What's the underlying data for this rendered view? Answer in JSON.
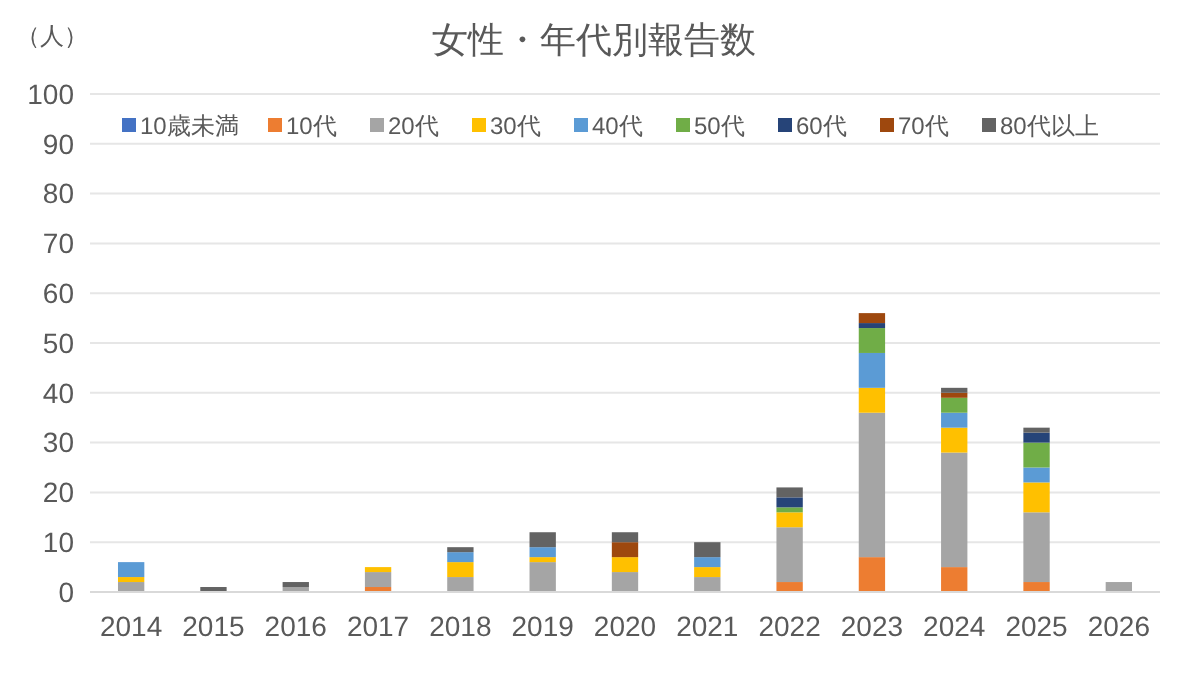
{
  "chart_data": {
    "type": "bar",
    "title": "女性・年代別報告数",
    "ylabel": "（人）",
    "stacked": true,
    "grid": "y",
    "legend": "top",
    "categories": [
      "2014",
      "2015",
      "2016",
      "2017",
      "2018",
      "2019",
      "2020",
      "2021",
      "2022",
      "2023",
      "2024",
      "2025",
      "2026"
    ],
    "ylim": [
      0,
      100
    ],
    "yticks": [
      0,
      10,
      20,
      30,
      40,
      50,
      60,
      70,
      80,
      90,
      100
    ],
    "series": [
      {
        "name": "10歳未満",
        "color": "#4472c4",
        "values": [
          0,
          0,
          0,
          0,
          0,
          0,
          0,
          0,
          0,
          0,
          0,
          0,
          0
        ]
      },
      {
        "name": "10代",
        "color": "#ed7d31",
        "values": [
          0,
          0,
          0,
          1,
          0,
          0,
          0,
          0,
          2,
          7,
          5,
          2,
          0
        ]
      },
      {
        "name": "20代",
        "color": "#a5a5a5",
        "values": [
          2,
          0,
          1,
          3,
          3,
          6,
          4,
          3,
          11,
          29,
          23,
          14,
          2
        ]
      },
      {
        "name": "30代",
        "color": "#ffc000",
        "values": [
          1,
          0,
          0,
          1,
          3,
          1,
          3,
          2,
          3,
          5,
          5,
          6,
          0
        ]
      },
      {
        "name": "40代",
        "color": "#5b9bd5",
        "values": [
          3,
          0,
          0,
          0,
          2,
          2,
          0,
          2,
          0,
          7,
          3,
          3,
          0
        ]
      },
      {
        "name": "50代",
        "color": "#70ad47",
        "values": [
          0,
          0,
          0,
          0,
          0,
          0,
          0,
          0,
          1,
          5,
          3,
          5,
          0
        ]
      },
      {
        "name": "60代",
        "color": "#264478",
        "values": [
          0,
          0,
          0,
          0,
          0,
          0,
          0,
          0,
          2,
          1,
          0,
          2,
          0
        ]
      },
      {
        "name": "70代",
        "color": "#9e480e",
        "values": [
          0,
          0,
          0,
          0,
          0,
          0,
          3,
          0,
          0,
          2,
          1,
          0,
          0
        ]
      },
      {
        "name": "80代以上",
        "color": "#636363",
        "values": [
          0,
          1,
          1,
          0,
          1,
          3,
          2,
          3,
          2,
          0,
          1,
          1,
          0
        ]
      }
    ]
  }
}
